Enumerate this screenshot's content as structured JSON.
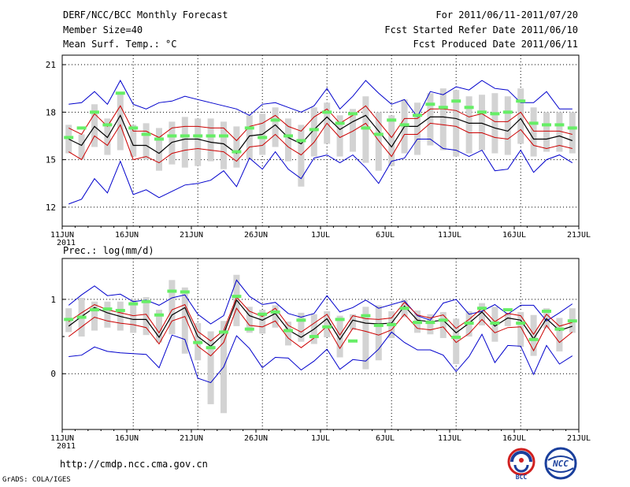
{
  "header": {
    "left": [
      "DERF/NCC/BCC Monthly Forecast",
      "Member Size=40",
      "Mean Surf. Temp.: °C"
    ],
    "right": [
      "For 2011/06/11-2011/07/20",
      "Fcst Started Refer Date 2011/06/10",
      "Fcst Produced Date 2011/06/11"
    ]
  },
  "panel2_title": "Prec.: log(mm/d)",
  "footer": {
    "url": "http://cmdp.ncc.cma.gov.cn",
    "grads": "GrADS: COLA/IGES"
  },
  "logos": {
    "bcc": "BCC",
    "ncc": "NCC"
  },
  "colors": {
    "envelope": "#0000cc",
    "spread": "#cc0000",
    "mean": "#000000",
    "box": "#d3d3d3",
    "marker": "#66ee66"
  },
  "chart_data": [
    {
      "type": "line",
      "title": "Mean Surf. Temp.: °C",
      "x_tick_labels": [
        "11JUN",
        "16JUN",
        "21JUN",
        "26JUN",
        "1JUL",
        "6JUL",
        "11JUL",
        "16JUL",
        "21JUL"
      ],
      "x_year_label": "2011",
      "ylim": [
        10.8,
        21.6
      ],
      "yticks": [
        "12",
        "15",
        "18",
        "21"
      ],
      "series": [
        {
          "name": "max",
          "values": [
            18.5,
            18.6,
            19.3,
            18.5,
            20.0,
            18.5,
            18.2,
            18.6,
            18.7,
            19.0,
            18.8,
            18.6,
            18.4,
            18.2,
            17.8,
            18.5,
            18.6,
            18.3,
            18.0,
            18.4,
            19.5,
            18.2,
            19.0,
            20.0,
            19.2,
            18.5,
            18.8,
            17.7,
            19.3,
            19.1,
            19.6,
            19.4,
            20.0,
            19.5,
            19.4,
            18.6,
            18.6,
            19.3,
            18.2,
            18.2
          ]
        },
        {
          "name": "upper",
          "values": [
            17.0,
            16.6,
            17.9,
            17.1,
            18.4,
            16.8,
            16.8,
            16.4,
            17.0,
            17.1,
            17.1,
            17.0,
            17.0,
            16.2,
            17.1,
            17.3,
            17.8,
            17.1,
            16.8,
            17.7,
            18.2,
            17.3,
            17.8,
            18.4,
            17.4,
            16.4,
            17.6,
            17.6,
            18.2,
            18.2,
            18.1,
            17.7,
            17.9,
            17.4,
            17.4,
            18.0,
            16.8,
            16.8,
            16.8,
            16.6
          ]
        },
        {
          "name": "mean",
          "values": [
            16.3,
            15.9,
            17.1,
            16.4,
            17.8,
            15.9,
            15.9,
            15.4,
            16.1,
            16.3,
            16.3,
            16.1,
            16.0,
            15.4,
            16.5,
            16.6,
            17.2,
            16.4,
            16.0,
            16.9,
            17.7,
            16.9,
            17.4,
            17.8,
            16.8,
            15.8,
            17.1,
            17.1,
            17.7,
            17.7,
            17.6,
            17.3,
            17.3,
            17.0,
            16.8,
            17.6,
            16.3,
            16.3,
            16.5,
            16.2
          ]
        },
        {
          "name": "lower",
          "values": [
            15.5,
            15.0,
            16.5,
            15.9,
            17.2,
            15.0,
            15.2,
            14.8,
            15.4,
            15.6,
            15.7,
            15.6,
            15.5,
            14.9,
            15.8,
            15.9,
            16.6,
            15.8,
            15.3,
            16.1,
            17.3,
            16.4,
            16.8,
            17.3,
            16.2,
            15.2,
            16.6,
            16.6,
            17.3,
            17.2,
            17.1,
            16.7,
            16.7,
            16.4,
            16.3,
            16.9,
            15.9,
            15.7,
            15.9,
            15.7
          ]
        },
        {
          "name": "min",
          "values": [
            12.2,
            12.5,
            13.8,
            12.9,
            14.9,
            12.8,
            13.1,
            12.6,
            13.0,
            13.4,
            13.5,
            13.7,
            14.3,
            13.3,
            15.1,
            14.4,
            15.5,
            14.4,
            13.8,
            15.1,
            15.3,
            14.8,
            15.3,
            14.5,
            13.5,
            14.9,
            15.1,
            16.3,
            16.3,
            15.7,
            15.6,
            15.2,
            15.6,
            14.3,
            14.4,
            15.6,
            14.2,
            15.0,
            15.3,
            14.8
          ]
        },
        {
          "name": "box_low",
          "values": [
            15.4,
            15.0,
            15.8,
            15.3,
            15.6,
            15.2,
            15.0,
            14.3,
            14.7,
            14.5,
            14.6,
            14.9,
            14.4,
            14.5,
            15.0,
            15.3,
            15.8,
            14.9,
            13.3,
            15.2,
            16.0,
            15.2,
            15.5,
            14.8,
            14.3,
            14.6,
            15.4,
            15.3,
            15.9,
            15.6,
            15.2,
            15.4,
            15.6,
            15.4,
            15.3,
            16.0,
            15.2,
            15.5,
            15.5,
            15.4
          ]
        },
        {
          "name": "box_high",
          "values": [
            17.2,
            16.6,
            18.5,
            17.6,
            19.2,
            17.2,
            17.3,
            17.0,
            17.4,
            17.7,
            17.6,
            17.6,
            17.4,
            17.1,
            17.8,
            17.9,
            18.3,
            17.6,
            17.2,
            18.3,
            18.6,
            17.8,
            18.2,
            19.0,
            18.0,
            17.8,
            18.8,
            18.6,
            19.2,
            19.5,
            19.4,
            19.0,
            19.1,
            19.2,
            19.0,
            19.5,
            18.3,
            18.0,
            18.0,
            18.0
          ]
        },
        {
          "name": "marker",
          "values": [
            16.4,
            17.0,
            18.0,
            17.2,
            19.2,
            17.0,
            16.6,
            16.3,
            16.5,
            16.5,
            16.5,
            16.5,
            16.5,
            15.5,
            17.0,
            16.4,
            17.5,
            16.5,
            16.2,
            16.9,
            18.0,
            17.3,
            17.9,
            17.0,
            16.6,
            17.5,
            17.2,
            17.8,
            18.5,
            18.3,
            18.7,
            18.3,
            18.0,
            17.9,
            18.0,
            18.7,
            17.3,
            17.2,
            17.2,
            17.0
          ]
        }
      ]
    },
    {
      "type": "line",
      "title": "Prec.: log(mm/d)",
      "x_tick_labels": [
        "11JUN",
        "16JUN",
        "21JUN",
        "26JUN",
        "1JUL",
        "6JUL",
        "11JUL",
        "16JUL",
        "21JUL"
      ],
      "x_year_label": "2011",
      "ylim": [
        -0.75,
        1.55
      ],
      "yticks": [
        "0",
        "1"
      ],
      "series": [
        {
          "name": "max",
          "values": [
            0.92,
            1.06,
            1.18,
            1.05,
            1.07,
            0.97,
            0.99,
            0.92,
            1.02,
            1.06,
            0.8,
            0.67,
            0.78,
            1.26,
            1.04,
            0.93,
            0.96,
            0.81,
            0.76,
            0.81,
            1.05,
            0.83,
            0.89,
            0.99,
            0.88,
            0.93,
            0.98,
            0.78,
            0.72,
            0.95,
            1.0,
            0.8,
            0.84,
            0.93,
            0.8,
            0.92,
            0.92,
            0.71,
            0.82,
            0.94
          ]
        },
        {
          "name": "upper",
          "values": [
            0.7,
            0.82,
            0.93,
            0.86,
            0.82,
            0.78,
            0.8,
            0.55,
            0.86,
            0.93,
            0.57,
            0.44,
            0.58,
            1.03,
            0.84,
            0.77,
            0.88,
            0.65,
            0.56,
            0.68,
            0.8,
            0.52,
            0.78,
            0.74,
            0.73,
            0.75,
            0.96,
            0.79,
            0.75,
            0.79,
            0.61,
            0.73,
            0.88,
            0.7,
            0.81,
            0.78,
            0.53,
            0.8,
            0.64,
            0.69
          ]
        },
        {
          "name": "mean",
          "values": [
            0.64,
            0.77,
            0.89,
            0.82,
            0.77,
            0.73,
            0.73,
            0.49,
            0.79,
            0.89,
            0.5,
            0.37,
            0.53,
            0.99,
            0.78,
            0.72,
            0.81,
            0.59,
            0.49,
            0.6,
            0.74,
            0.46,
            0.72,
            0.68,
            0.67,
            0.68,
            0.91,
            0.72,
            0.7,
            0.72,
            0.55,
            0.68,
            0.83,
            0.64,
            0.75,
            0.72,
            0.47,
            0.74,
            0.58,
            0.64
          ]
        },
        {
          "name": "lower",
          "values": [
            0.5,
            0.63,
            0.76,
            0.71,
            0.68,
            0.66,
            0.62,
            0.4,
            0.71,
            0.77,
            0.37,
            0.24,
            0.42,
            0.88,
            0.65,
            0.63,
            0.71,
            0.48,
            0.35,
            0.48,
            0.64,
            0.34,
            0.61,
            0.57,
            0.52,
            0.59,
            0.8,
            0.61,
            0.59,
            0.63,
            0.42,
            0.54,
            0.73,
            0.55,
            0.62,
            0.63,
            0.31,
            0.65,
            0.42,
            0.56
          ]
        },
        {
          "name": "min",
          "values": [
            0.23,
            0.25,
            0.36,
            0.3,
            0.28,
            0.27,
            0.26,
            0.08,
            0.52,
            0.46,
            -0.06,
            -0.12,
            0.09,
            0.51,
            0.34,
            0.08,
            0.22,
            0.21,
            0.05,
            0.17,
            0.33,
            0.06,
            0.19,
            0.17,
            0.33,
            0.56,
            0.42,
            0.32,
            0.32,
            0.25,
            0.03,
            0.23,
            0.53,
            0.15,
            0.38,
            0.37,
            -0.01,
            0.38,
            0.13,
            0.24
          ]
        },
        {
          "name": "box_low",
          "values": [
            0.56,
            0.5,
            0.58,
            0.62,
            0.58,
            0.55,
            0.52,
            0.42,
            0.53,
            0.27,
            0.18,
            -0.41,
            -0.53,
            0.64,
            0.55,
            0.54,
            0.62,
            0.38,
            0.43,
            0.4,
            0.49,
            0.22,
            0.59,
            0.06,
            0.18,
            0.48,
            0.76,
            0.55,
            0.53,
            0.48,
            0.13,
            0.5,
            0.65,
            0.43,
            0.64,
            0.36,
            0.24,
            0.61,
            0.3,
            0.55
          ]
        },
        {
          "name": "box_high",
          "values": [
            0.88,
            1.02,
            0.97,
            0.97,
            0.97,
            1.0,
            1.03,
            0.86,
            1.26,
            1.16,
            0.68,
            0.57,
            0.71,
            1.33,
            0.9,
            0.86,
            0.92,
            0.7,
            0.82,
            0.8,
            0.84,
            0.78,
            0.8,
            0.9,
            0.92,
            0.84,
            1.0,
            0.85,
            0.8,
            0.83,
            0.74,
            0.84,
            0.95,
            0.9,
            0.82,
            0.83,
            0.79,
            0.88,
            0.75,
            0.88
          ]
        },
        {
          "name": "marker",
          "values": [
            0.73,
            0.76,
            0.86,
            0.87,
            0.85,
            0.94,
            0.97,
            0.79,
            1.11,
            1.1,
            0.42,
            0.35,
            0.56,
            1.04,
            0.6,
            0.8,
            0.83,
            0.58,
            0.72,
            0.5,
            0.63,
            0.73,
            0.44,
            0.78,
            0.65,
            0.66,
            0.88,
            0.69,
            0.69,
            0.72,
            0.49,
            0.68,
            0.88,
            0.68,
            0.86,
            0.68,
            0.46,
            0.84,
            0.6,
            0.71
          ]
        }
      ]
    }
  ]
}
